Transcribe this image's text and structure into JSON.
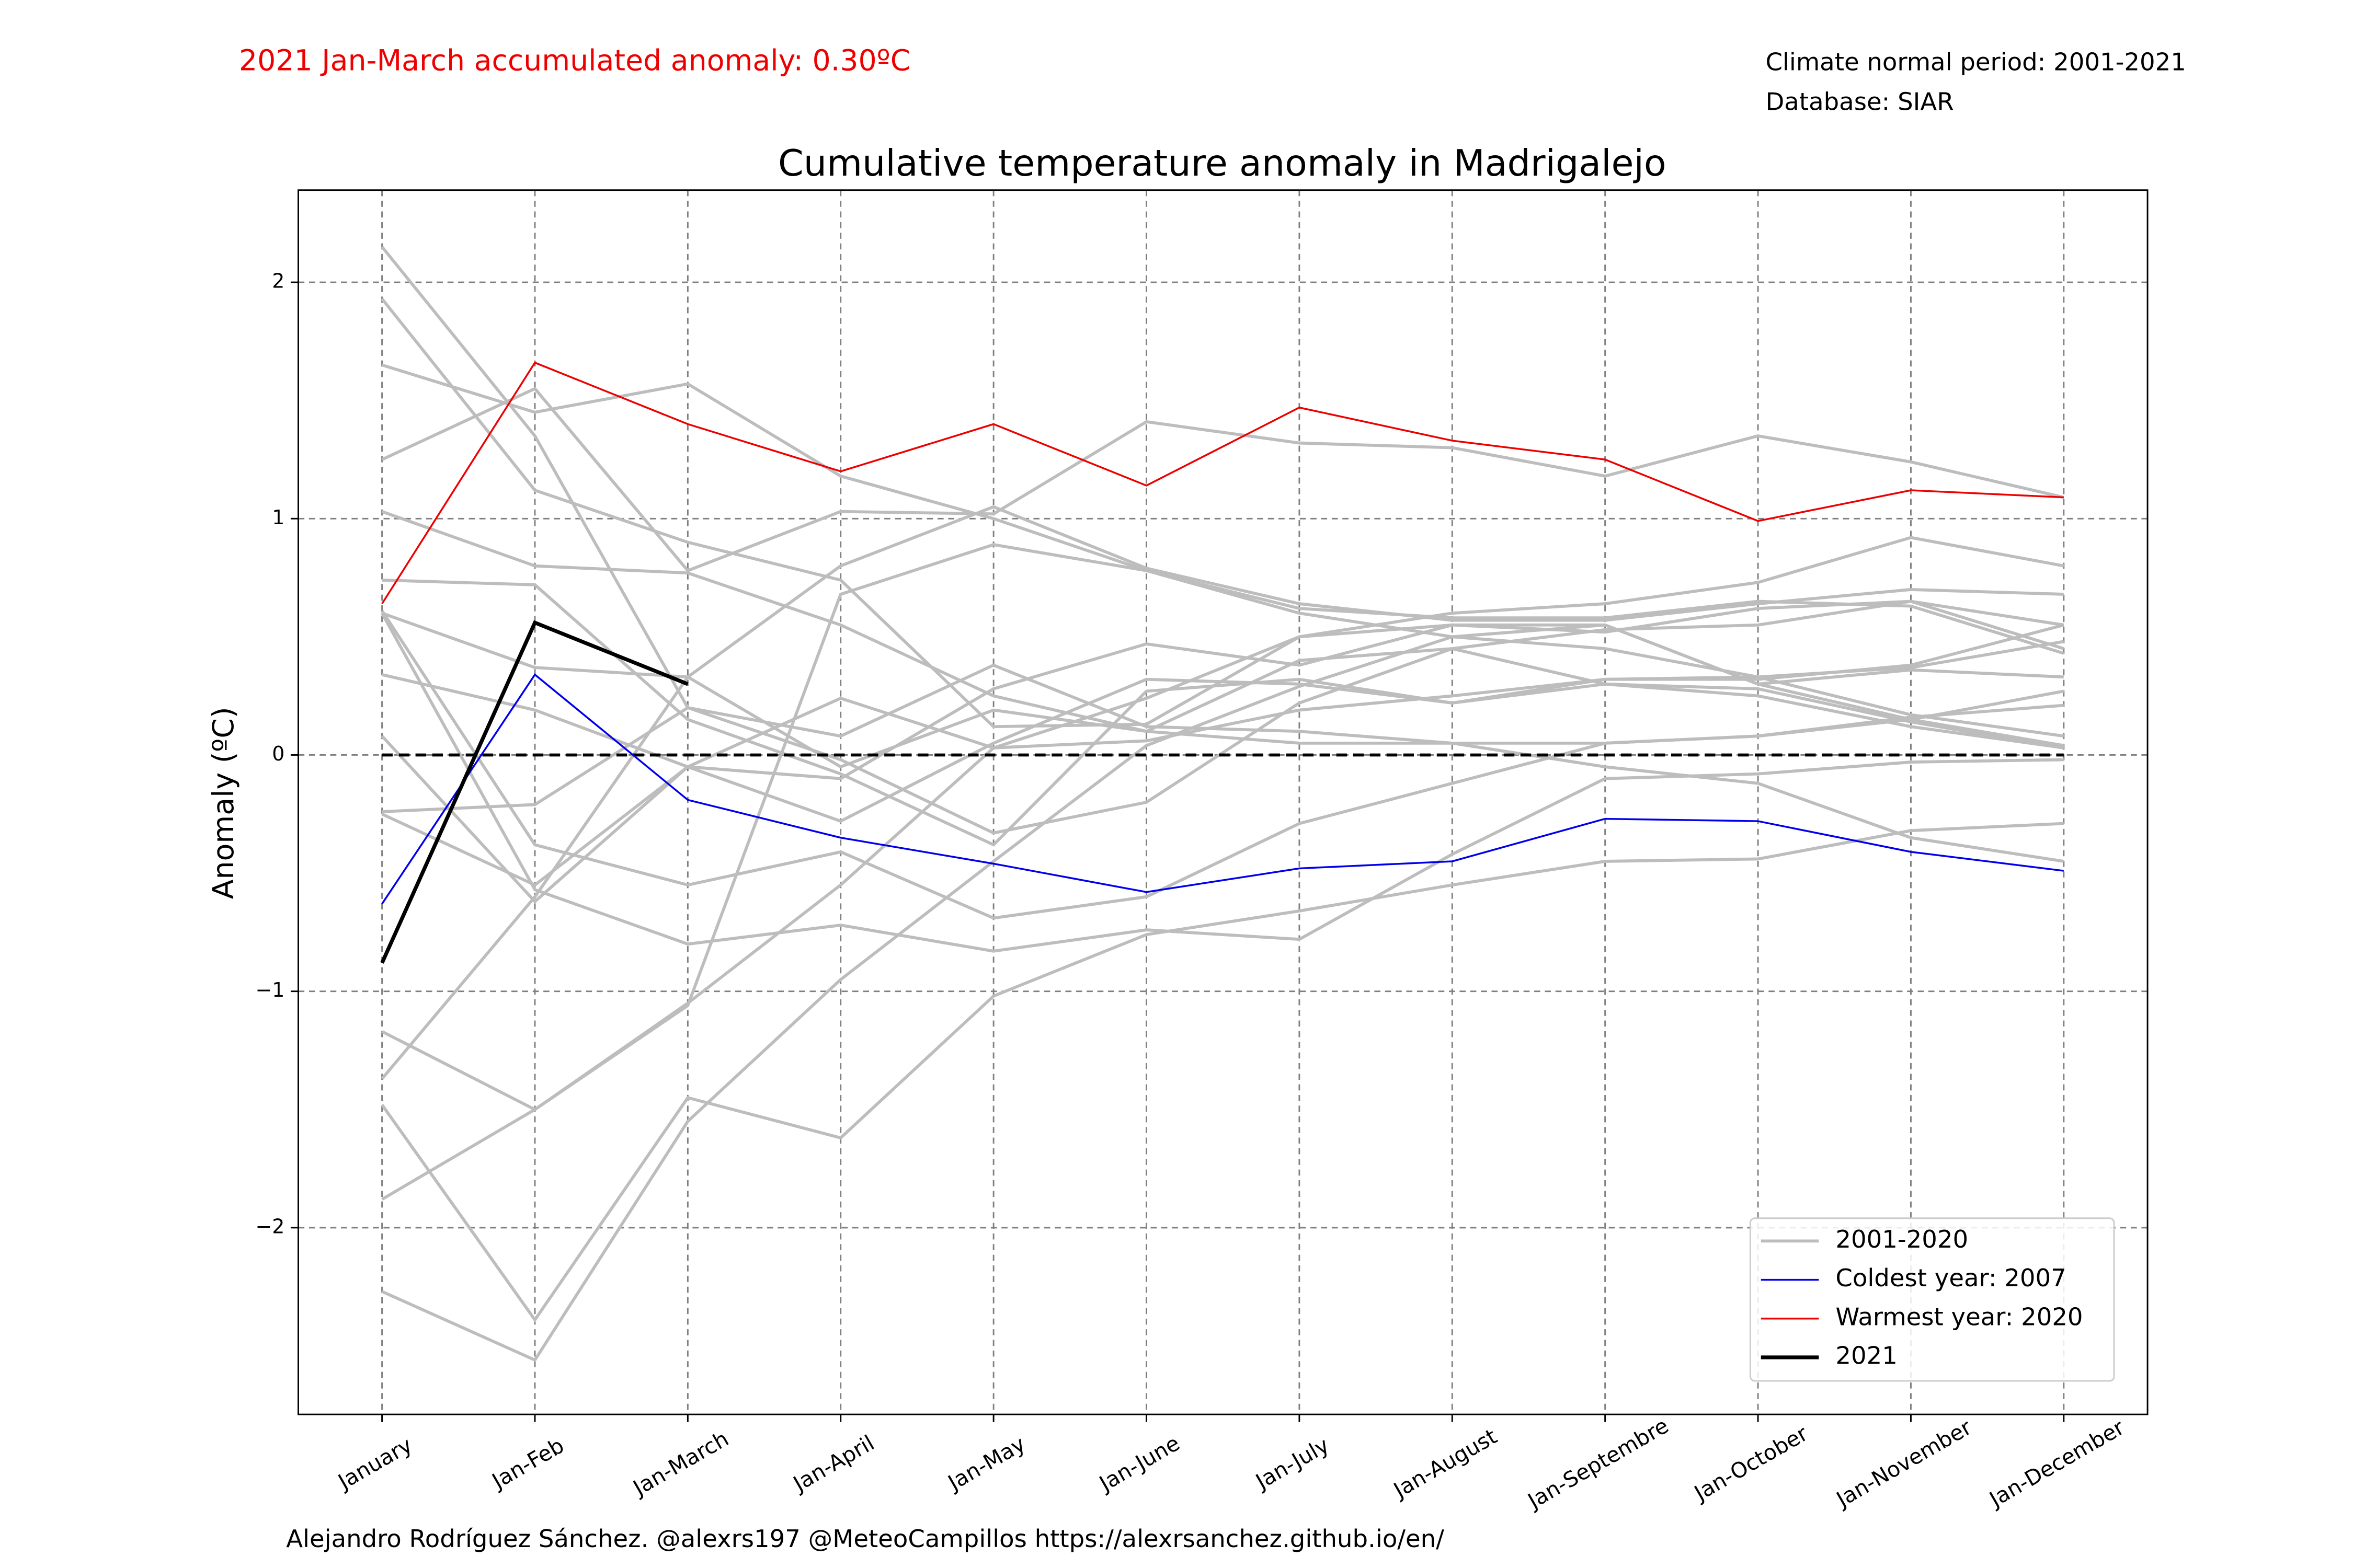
{
  "chart_data": {
    "type": "line",
    "title": "Cumulative temperature anomaly in Madrigalejo",
    "annotation": "2021 Jan-March accumulated anomaly: 0.30ºC",
    "info": [
      "Climate normal period: 2001-2021",
      "Database: SIAR"
    ],
    "footer": "Alejandro Rodríguez Sánchez. @alexrs197 @MeteoCampillos   https://alexrsanchez.github.io/en/",
    "y_label": "Anomaly (ºC)",
    "categories": [
      "January",
      "Jan-Feb",
      "Jan-March",
      "Jan-April",
      "Jan-May",
      "Jan-June",
      "Jan-July",
      "Jan-August",
      "Jan-Septembre",
      "Jan-October",
      "Jan-November",
      "Jan-December"
    ],
    "ylim": [
      -2.79,
      2.39
    ],
    "yticks": [
      {
        "value": -2,
        "label": "−2"
      },
      {
        "value": -1,
        "label": "−1"
      },
      0,
      1,
      2
    ],
    "grid": true,
    "reference_line": 0,
    "legend": "lower right",
    "background_series": {
      "name": "2001-2020",
      "color": "#bdbdbd",
      "lines": [
        [
          2.15,
          1.35,
          0.2,
          0.08,
          0.38,
          0.12,
          0.1,
          0.05,
          -0.05,
          -0.12,
          -0.35,
          -0.45
        ],
        [
          1.93,
          1.12,
          0.9,
          0.74,
          0.12,
          0.13,
          0.5,
          0.55,
          0.55,
          0.3,
          0.15,
          0.04
        ],
        [
          1.65,
          1.45,
          1.57,
          1.18,
          1.0,
          0.78,
          0.6,
          0.5,
          0.45,
          0.33,
          0.17,
          0.08
        ],
        [
          1.25,
          1.55,
          0.78,
          1.03,
          1.02,
          1.41,
          1.32,
          1.3,
          1.18,
          1.35,
          1.24,
          1.09
        ],
        [
          1.03,
          0.8,
          0.77,
          0.55,
          0.25,
          0.1,
          0.4,
          0.45,
          0.53,
          0.55,
          0.65,
          0.55
        ],
        [
          0.74,
          0.72,
          0.15,
          -0.08,
          -0.38,
          0.27,
          0.32,
          0.22,
          0.32,
          0.33,
          0.37,
          0.48
        ],
        [
          0.61,
          -0.38,
          -0.55,
          -0.41,
          -0.69,
          -0.6,
          -0.29,
          -0.12,
          0.05,
          0.08,
          0.16,
          0.21
        ],
        [
          0.6,
          -0.57,
          -0.8,
          -0.72,
          -0.83,
          -0.74,
          -0.78,
          -0.42,
          -0.1,
          -0.08,
          -0.03,
          -0.02
        ],
        [
          0.34,
          0.19,
          -0.05,
          -0.28,
          0.05,
          0.32,
          0.3,
          0.22,
          0.3,
          0.28,
          0.14,
          0.03
        ],
        [
          0.08,
          -0.62,
          -0.05,
          0.24,
          0.03,
          0.06,
          0.19,
          0.25,
          0.32,
          0.32,
          0.38,
          0.55
        ],
        [
          -0.24,
          -0.21,
          0.2,
          -0.02,
          -0.33,
          -0.2,
          0.22,
          0.45,
          0.3,
          0.25,
          0.12,
          0.03
        ],
        [
          -0.25,
          -0.55,
          -0.05,
          -0.1,
          0.28,
          0.47,
          0.38,
          0.55,
          0.52,
          0.62,
          0.65,
          0.45
        ],
        [
          -1.17,
          -1.5,
          -1.05,
          -0.55,
          0.03,
          0.24,
          0.5,
          0.6,
          0.64,
          0.73,
          0.92,
          0.8
        ],
        [
          -1.37,
          -0.6,
          0.33,
          0.8,
          1.05,
          0.79,
          0.64,
          0.57,
          0.57,
          0.64,
          0.7,
          0.68
        ],
        [
          -1.48,
          -2.39,
          -1.45,
          -1.62,
          -1.02,
          -0.76,
          -0.66,
          -0.55,
          -0.45,
          -0.44,
          -0.32,
          -0.29
        ],
        [
          -1.88,
          -1.5,
          -1.06,
          0.68,
          0.89,
          0.78,
          0.62,
          0.58,
          0.58,
          0.65,
          0.63,
          0.43
        ],
        [
          -2.27,
          -2.56,
          -1.55,
          -0.95,
          -0.45,
          0.04,
          0.29,
          0.5,
          0.55,
          0.3,
          0.36,
          0.33
        ],
        [
          0.6,
          0.37,
          0.33,
          -0.05,
          0.19,
          0.1,
          0.05,
          0.05,
          0.05,
          0.08,
          0.15,
          0.27
        ]
      ]
    },
    "series": [
      {
        "name": "Coldest year: 2007",
        "color": "#0000ee",
        "width": 1.2,
        "values": [
          -0.63,
          0.34,
          -0.19,
          -0.35,
          -0.46,
          -0.58,
          -0.48,
          -0.45,
          -0.27,
          -0.28,
          -0.41,
          -0.49
        ]
      },
      {
        "name": "Warmest year: 2020",
        "color": "#ee0000",
        "width": 1.2,
        "values": [
          0.64,
          1.66,
          1.4,
          1.2,
          1.4,
          1.14,
          1.47,
          1.33,
          1.25,
          0.99,
          1.12,
          1.09
        ]
      },
      {
        "name": "2021",
        "color": "#000000",
        "width": 2.5,
        "values": [
          -0.88,
          0.56,
          0.3,
          null,
          null,
          null,
          null,
          null,
          null,
          null,
          null,
          null
        ]
      }
    ]
  }
}
